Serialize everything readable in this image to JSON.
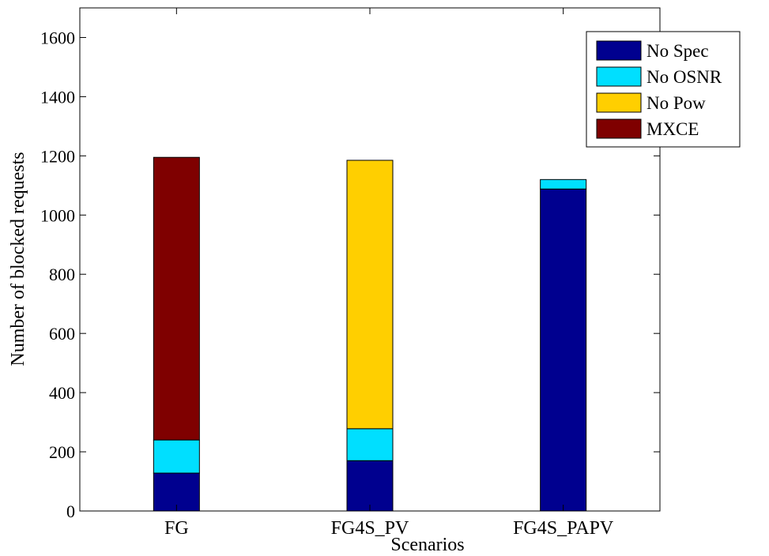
{
  "chart_data": {
    "type": "bar",
    "stacked": true,
    "categories": [
      "FG",
      "FG4S_PV",
      "FG4S_PAPV"
    ],
    "series": [
      {
        "name": "No Spec",
        "color": "#00008f",
        "values": [
          128,
          170,
          1088
        ]
      },
      {
        "name": "No OSNR",
        "color": "#00dfff",
        "values": [
          112,
          108,
          32
        ]
      },
      {
        "name": "No Pow",
        "color": "#ffcf00",
        "values": [
          0,
          907,
          0
        ]
      },
      {
        "name": "MXCE",
        "color": "#7f0000",
        "values": [
          955,
          0,
          0
        ]
      }
    ],
    "xlabel": "Scenarios",
    "ylabel": "Number of  blocked requests",
    "ylim": [
      0,
      1700
    ],
    "yticks": [
      0,
      200,
      400,
      600,
      800,
      1000,
      1200,
      1400,
      1600
    ],
    "grid": false,
    "legend_position": "top-right"
  }
}
